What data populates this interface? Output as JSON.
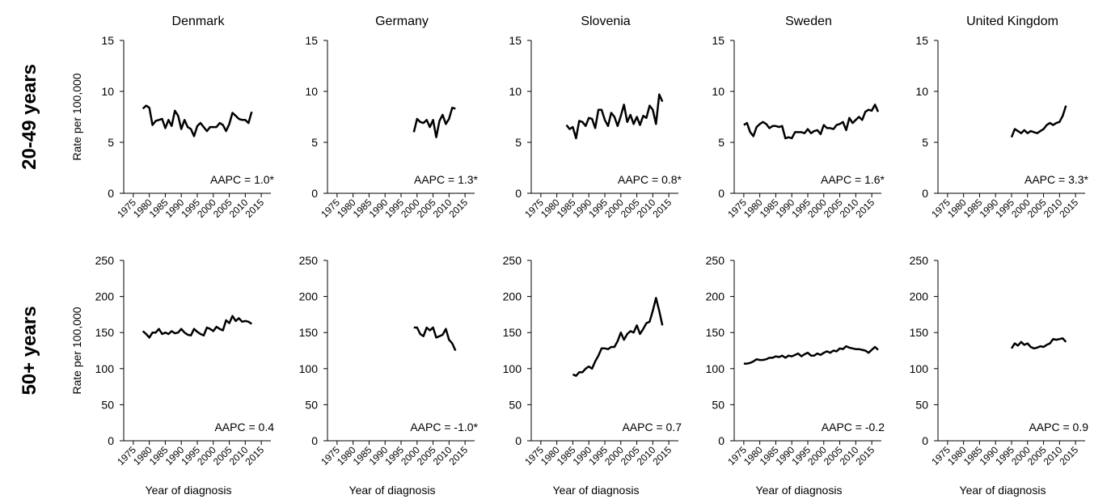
{
  "chart_data": [
    {
      "type": "line",
      "title": "Denmark",
      "row_label": "20-49 years",
      "ylabel": "Rate per 100,000",
      "annotation": "AAPC = 1.0*",
      "color": "#000000",
      "x": [
        1978,
        1979,
        1980,
        1981,
        1982,
        1983,
        1984,
        1985,
        1986,
        1987,
        1988,
        1989,
        1990,
        1991,
        1992,
        1993,
        1994,
        1995,
        1996,
        1997,
        1998,
        1999,
        2000,
        2001,
        2002,
        2003,
        2004,
        2005,
        2006,
        2007,
        2008,
        2009,
        2010,
        2011,
        2012
      ],
      "values": [
        8.3,
        8.6,
        8.4,
        6.7,
        7.1,
        7.2,
        7.3,
        6.4,
        7.2,
        6.6,
        8.1,
        7.6,
        6.3,
        7.2,
        6.5,
        6.3,
        5.6,
        6.6,
        6.9,
        6.5,
        6.1,
        6.5,
        6.5,
        6.5,
        6.9,
        6.7,
        6.1,
        6.8,
        7.9,
        7.6,
        7.3,
        7.2,
        7.2,
        6.9,
        8.0
      ],
      "xlim": [
        1972,
        2018
      ],
      "ylim": [
        0,
        15
      ],
      "xticks": [
        1975,
        1980,
        1985,
        1990,
        1995,
        2000,
        2005,
        2010,
        2015
      ],
      "yticks": [
        0,
        5,
        10,
        15
      ]
    },
    {
      "type": "line",
      "title": "Germany",
      "annotation": "AAPC = 1.3*",
      "color": "#000000",
      "x": [
        1999,
        2000,
        2001,
        2002,
        2003,
        2004,
        2005,
        2006,
        2007,
        2008,
        2009,
        2010,
        2011,
        2012
      ],
      "values": [
        6.0,
        7.3,
        7.0,
        6.9,
        7.2,
        6.5,
        7.2,
        5.5,
        7.1,
        7.7,
        6.8,
        7.3,
        8.4,
        8.3
      ],
      "xlim": [
        1972,
        2018
      ],
      "ylim": [
        0,
        15
      ],
      "xticks": [
        1975,
        1980,
        1985,
        1990,
        1995,
        2000,
        2005,
        2010,
        2015
      ],
      "yticks": [
        0,
        5,
        10,
        15
      ]
    },
    {
      "type": "line",
      "title": "Slovenia",
      "annotation": "AAPC = 0.8*",
      "color": "#000000",
      "x": [
        1983,
        1984,
        1985,
        1986,
        1987,
        1988,
        1989,
        1990,
        1991,
        1992,
        1993,
        1994,
        1995,
        1996,
        1997,
        1998,
        1999,
        2000,
        2001,
        2002,
        2003,
        2004,
        2005,
        2006,
        2007,
        2008,
        2009,
        2010,
        2011,
        2012,
        2013
      ],
      "values": [
        6.7,
        6.3,
        6.5,
        5.4,
        7.1,
        7.0,
        6.6,
        7.4,
        7.3,
        6.4,
        8.2,
        8.2,
        7.2,
        6.6,
        7.9,
        7.5,
        6.6,
        7.6,
        8.7,
        7.0,
        7.7,
        6.8,
        7.5,
        6.7,
        7.6,
        7.4,
        8.6,
        8.2,
        6.8,
        9.7,
        9.0
      ],
      "xlim": [
        1972,
        2018
      ],
      "ylim": [
        0,
        15
      ],
      "xticks": [
        1975,
        1980,
        1985,
        1990,
        1995,
        2000,
        2005,
        2010,
        2015
      ],
      "yticks": [
        0,
        5,
        10,
        15
      ]
    },
    {
      "type": "line",
      "title": "Sweden",
      "annotation": "AAPC = 1.6*",
      "color": "#000000",
      "x": [
        1975,
        1976,
        1977,
        1978,
        1979,
        1980,
        1981,
        1982,
        1983,
        1984,
        1985,
        1986,
        1987,
        1988,
        1989,
        1990,
        1991,
        1992,
        1993,
        1994,
        1995,
        1996,
        1997,
        1998,
        1999,
        2000,
        2001,
        2002,
        2003,
        2004,
        2005,
        2006,
        2007,
        2008,
        2009,
        2010,
        2011,
        2012,
        2013,
        2014,
        2015,
        2016,
        2017
      ],
      "values": [
        6.7,
        6.9,
        6.0,
        5.6,
        6.5,
        6.8,
        7.0,
        6.8,
        6.4,
        6.6,
        6.6,
        6.5,
        6.6,
        5.4,
        5.5,
        5.4,
        6.0,
        6.0,
        6.0,
        5.9,
        6.3,
        5.9,
        6.1,
        6.2,
        5.8,
        6.7,
        6.4,
        6.4,
        6.3,
        6.7,
        6.8,
        7.0,
        6.2,
        7.4,
        6.9,
        7.2,
        7.5,
        7.2,
        8.0,
        8.2,
        8.1,
        8.7,
        8.0
      ],
      "xlim": [
        1972,
        2018
      ],
      "ylim": [
        0,
        15
      ],
      "xticks": [
        1975,
        1980,
        1985,
        1990,
        1995,
        2000,
        2005,
        2010,
        2015
      ],
      "yticks": [
        0,
        5,
        10,
        15
      ]
    },
    {
      "type": "line",
      "title": "United Kingdom",
      "annotation": "AAPC = 3.3*",
      "color": "#000000",
      "x": [
        1995,
        1996,
        1997,
        1998,
        1999,
        2000,
        2001,
        2002,
        2003,
        2004,
        2005,
        2006,
        2007,
        2008,
        2009,
        2010,
        2011,
        2012
      ],
      "values": [
        5.5,
        6.3,
        6.1,
        5.9,
        6.2,
        5.9,
        6.1,
        6.0,
        5.9,
        6.1,
        6.3,
        6.7,
        6.9,
        6.7,
        6.9,
        7.0,
        7.6,
        8.6
      ],
      "xlim": [
        1972,
        2018
      ],
      "ylim": [
        0,
        15
      ],
      "xticks": [
        1975,
        1980,
        1985,
        1990,
        1995,
        2000,
        2005,
        2010,
        2015
      ],
      "yticks": [
        0,
        5,
        10,
        15
      ]
    },
    {
      "type": "line",
      "row_label": "50+ years",
      "ylabel": "Rate per 100,000",
      "xlabel": "Year of diagnosis",
      "annotation": "AAPC = 0.4",
      "color": "#000000",
      "x": [
        1978,
        1979,
        1980,
        1981,
        1982,
        1983,
        1984,
        1985,
        1986,
        1987,
        1988,
        1989,
        1990,
        1991,
        1992,
        1993,
        1994,
        1995,
        1996,
        1997,
        1998,
        1999,
        2000,
        2001,
        2002,
        2003,
        2004,
        2005,
        2006,
        2007,
        2008,
        2009,
        2010,
        2011,
        2012
      ],
      "values": [
        152,
        148,
        143,
        150,
        150,
        155,
        148,
        150,
        148,
        152,
        149,
        150,
        155,
        150,
        147,
        146,
        155,
        151,
        148,
        146,
        157,
        155,
        152,
        158,
        155,
        153,
        167,
        163,
        173,
        166,
        170,
        165,
        166,
        165,
        162
      ],
      "xlim": [
        1972,
        2018
      ],
      "ylim": [
        0,
        250
      ],
      "xticks": [
        1975,
        1980,
        1985,
        1990,
        1995,
        2000,
        2005,
        2010,
        2015
      ],
      "yticks": [
        0,
        50,
        100,
        150,
        200,
        250
      ]
    },
    {
      "type": "line",
      "xlabel": "Year of diagnosis",
      "annotation": "AAPC = -1.0*",
      "color": "#000000",
      "x": [
        1999,
        2000,
        2001,
        2002,
        2003,
        2004,
        2005,
        2006,
        2007,
        2008,
        2009,
        2010,
        2011,
        2012
      ],
      "values": [
        157,
        157,
        148,
        145,
        157,
        153,
        157,
        143,
        145,
        147,
        155,
        140,
        135,
        125
      ],
      "xlim": [
        1972,
        2018
      ],
      "ylim": [
        0,
        250
      ],
      "xticks": [
        1975,
        1980,
        1985,
        1990,
        1995,
        2000,
        2005,
        2010,
        2015
      ],
      "yticks": [
        0,
        50,
        100,
        150,
        200,
        250
      ]
    },
    {
      "type": "line",
      "xlabel": "Year of diagnosis",
      "annotation": "AAPC = 0.7",
      "color": "#000000",
      "x": [
        1985,
        1986,
        1987,
        1988,
        1989,
        1990,
        1991,
        1992,
        1993,
        1994,
        1995,
        1996,
        1997,
        1998,
        1999,
        2000,
        2001,
        2002,
        2003,
        2004,
        2005,
        2006,
        2007,
        2008,
        2009,
        2010,
        2011,
        2012,
        2013
      ],
      "values": [
        92,
        90,
        95,
        95,
        100,
        103,
        100,
        110,
        118,
        128,
        128,
        127,
        130,
        130,
        138,
        150,
        140,
        148,
        152,
        150,
        160,
        148,
        155,
        163,
        165,
        180,
        198,
        180,
        160
      ],
      "xlim": [
        1972,
        2018
      ],
      "ylim": [
        0,
        250
      ],
      "xticks": [
        1975,
        1980,
        1985,
        1990,
        1995,
        2000,
        2005,
        2010,
        2015
      ],
      "yticks": [
        0,
        50,
        100,
        150,
        200,
        250
      ]
    },
    {
      "type": "line",
      "xlabel": "Year of diagnosis",
      "annotation": "AAPC = -0.2",
      "color": "#000000",
      "x": [
        1975,
        1976,
        1977,
        1978,
        1979,
        1980,
        1981,
        1982,
        1983,
        1984,
        1985,
        1986,
        1987,
        1988,
        1989,
        1990,
        1991,
        1992,
        1993,
        1994,
        1995,
        1996,
        1997,
        1998,
        1999,
        2000,
        2001,
        2002,
        2003,
        2004,
        2005,
        2006,
        2007,
        2008,
        2009,
        2010,
        2011,
        2012,
        2013,
        2014,
        2015,
        2016,
        2017
      ],
      "values": [
        107,
        107,
        108,
        110,
        113,
        112,
        112,
        113,
        115,
        115,
        117,
        116,
        118,
        115,
        118,
        117,
        119,
        121,
        117,
        120,
        122,
        118,
        118,
        121,
        119,
        122,
        124,
        122,
        125,
        124,
        128,
        127,
        131,
        129,
        128,
        127,
        127,
        126,
        125,
        122,
        126,
        130,
        126
      ],
      "xlim": [
        1972,
        2018
      ],
      "ylim": [
        0,
        250
      ],
      "xticks": [
        1975,
        1980,
        1985,
        1990,
        1995,
        2000,
        2005,
        2010,
        2015
      ],
      "yticks": [
        0,
        50,
        100,
        150,
        200,
        250
      ]
    },
    {
      "type": "line",
      "xlabel": "Year of diagnosis",
      "annotation": "AAPC = 0.9",
      "color": "#000000",
      "x": [
        1995,
        1996,
        1997,
        1998,
        1999,
        2000,
        2001,
        2002,
        2003,
        2004,
        2005,
        2006,
        2007,
        2008,
        2009,
        2010,
        2011,
        2012
      ],
      "values": [
        128,
        135,
        132,
        137,
        133,
        135,
        130,
        128,
        129,
        131,
        130,
        133,
        135,
        141,
        140,
        141,
        142,
        137
      ],
      "xlim": [
        1972,
        2018
      ],
      "ylim": [
        0,
        250
      ],
      "xticks": [
        1975,
        1980,
        1985,
        1990,
        1995,
        2000,
        2005,
        2010,
        2015
      ],
      "yticks": [
        0,
        50,
        100,
        150,
        200,
        250
      ]
    }
  ]
}
